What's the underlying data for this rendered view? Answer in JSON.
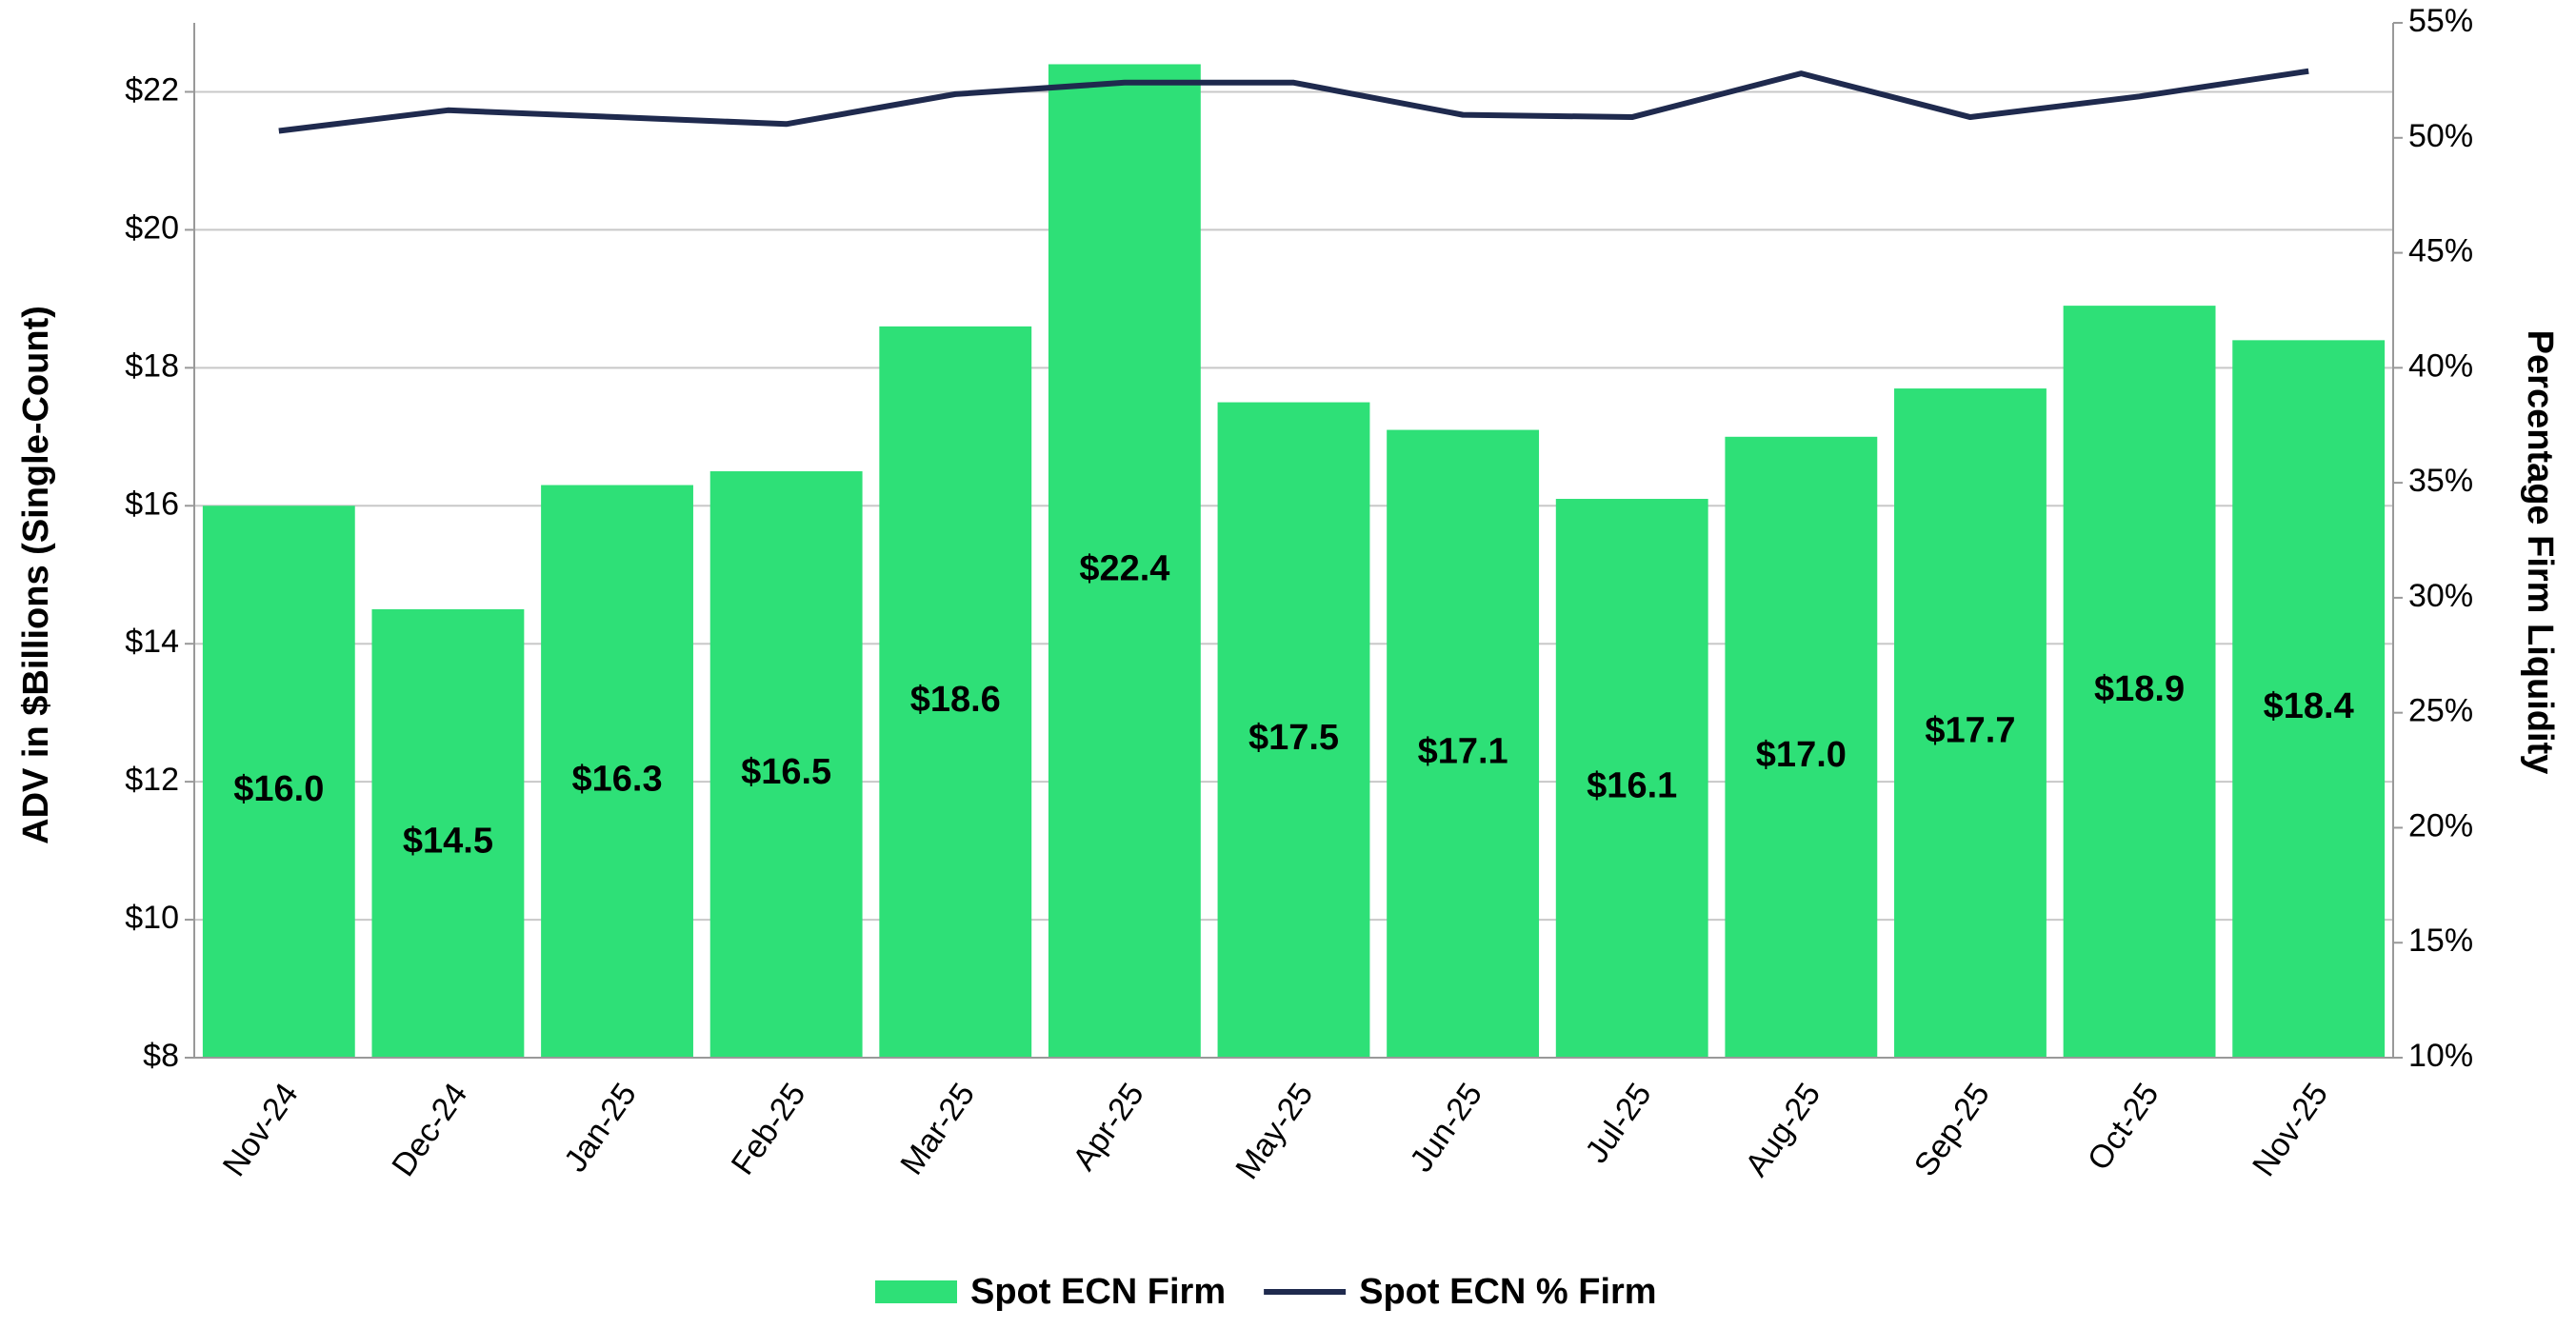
{
  "chart_data": {
    "type": "bar",
    "categories": [
      "Nov-24",
      "Dec-24",
      "Jan-25",
      "Feb-25",
      "Mar-25",
      "Apr-25",
      "May-25",
      "Jun-25",
      "Jul-25",
      "Aug-25",
      "Sep-25",
      "Oct-25",
      "Nov-25"
    ],
    "series": [
      {
        "name": "Spot ECN Firm",
        "type": "bar",
        "color": "#2ee077",
        "values": [
          16.0,
          14.5,
          16.3,
          16.5,
          18.6,
          22.4,
          17.5,
          17.1,
          16.1,
          17.0,
          17.7,
          18.9,
          18.4
        ],
        "value_labels": [
          "$16.0",
          "$14.5",
          "$16.3",
          "$16.5",
          "$18.6",
          "$22.4",
          "$17.5",
          "$17.1",
          "$16.1",
          "$17.0",
          "$17.7",
          "$18.9",
          "$18.4"
        ]
      },
      {
        "name": "Spot ECN % Firm",
        "type": "line",
        "color": "#1f2a4e",
        "axis": "y2",
        "values": [
          50.3,
          51.2,
          50.9,
          50.6,
          51.9,
          52.4,
          52.4,
          51.0,
          50.9,
          52.8,
          50.9,
          51.8,
          52.9
        ]
      }
    ],
    "y_label": "ADV in $Billions  (Single-Count)",
    "y2_label": "Percentage Firm Liquidity",
    "ylim": [
      8,
      23
    ],
    "yticks": [
      {
        "value": 8,
        "label": "$8"
      },
      {
        "value": 10,
        "label": "$10"
      },
      {
        "value": 12,
        "label": "$12"
      },
      {
        "value": 14,
        "label": "$14"
      },
      {
        "value": 16,
        "label": "$16"
      },
      {
        "value": 18,
        "label": "$18"
      },
      {
        "value": 20,
        "label": "$20"
      },
      {
        "value": 22,
        "label": "$22"
      }
    ],
    "y2lim": [
      10,
      55
    ],
    "y2ticks": [
      {
        "value": 10,
        "label": "10%"
      },
      {
        "value": 15,
        "label": "15%"
      },
      {
        "value": 20,
        "label": "20%"
      },
      {
        "value": 25,
        "label": "25%"
      },
      {
        "value": 30,
        "label": "30%"
      },
      {
        "value": 35,
        "label": "35%"
      },
      {
        "value": 40,
        "label": "40%"
      },
      {
        "value": 45,
        "label": "45%"
      },
      {
        "value": 50,
        "label": "50%"
      },
      {
        "value": 55,
        "label": "55%"
      }
    ],
    "grid": true,
    "legend": "bottom"
  }
}
